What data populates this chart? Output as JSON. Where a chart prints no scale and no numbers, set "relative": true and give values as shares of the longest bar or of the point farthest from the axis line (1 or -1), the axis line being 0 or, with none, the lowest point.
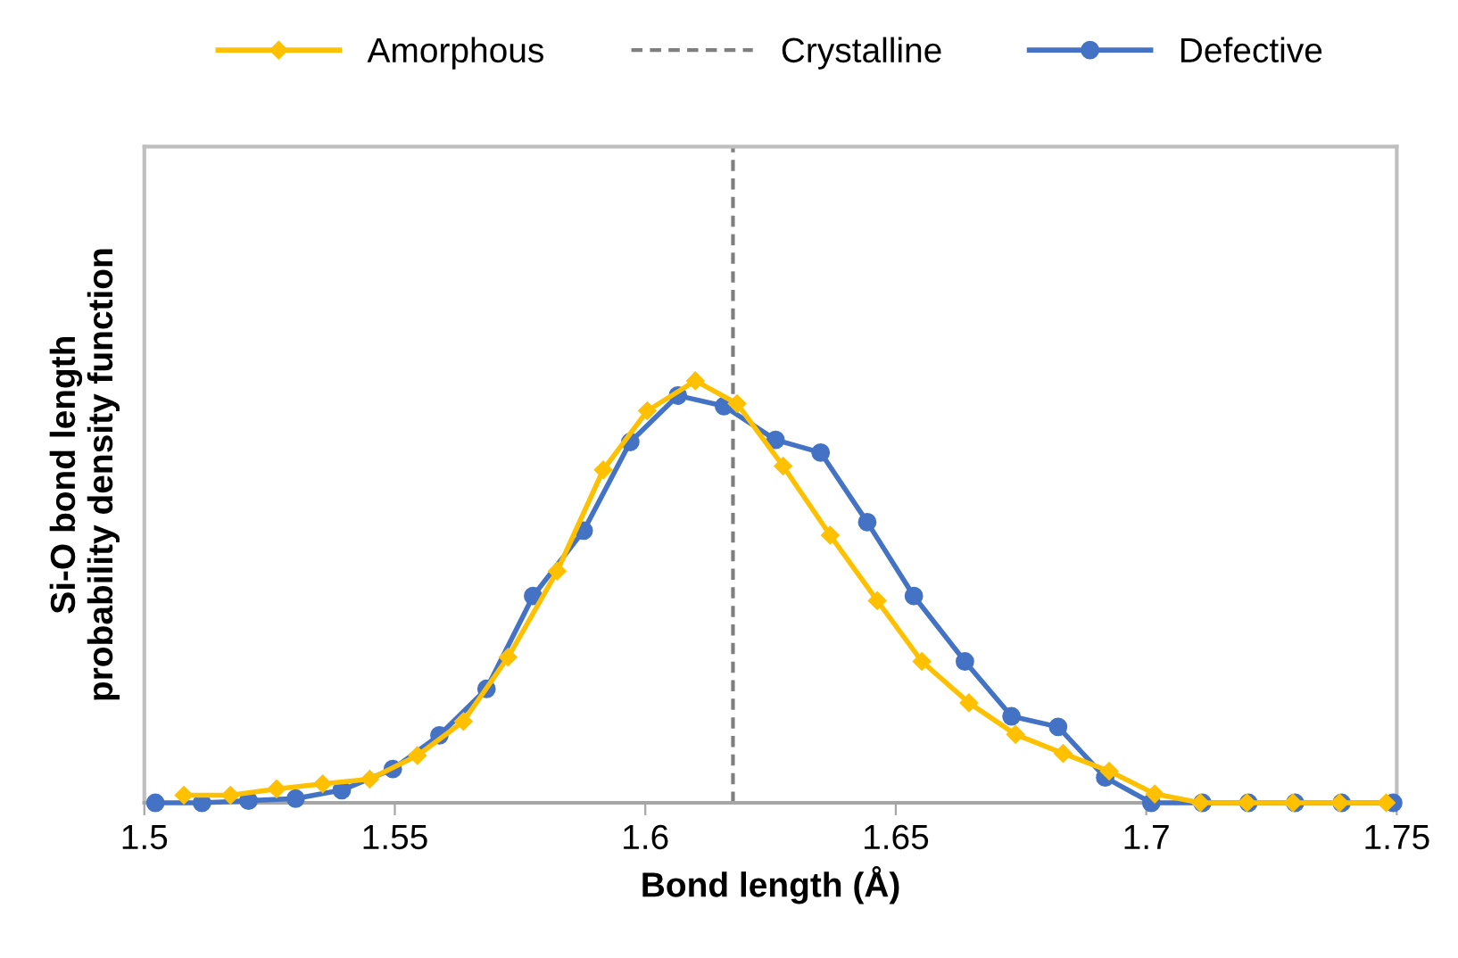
{
  "chart_data": {
    "type": "line",
    "xlabel": "Bond length (Å)",
    "ylabel": "Si-O bond length\nprobability density function",
    "relative": true,
    "xlim": [
      1.5,
      1.75
    ],
    "xticks": [
      1.5,
      1.55,
      1.6,
      1.65,
      1.7,
      1.75
    ],
    "grid": false,
    "legend": "top",
    "series": [
      {
        "name": "Amorphous",
        "color": "#ffc000",
        "marker": "diamond",
        "x": [
          1.5079,
          1.5172,
          1.5264,
          1.5356,
          1.545,
          1.5545,
          1.5637,
          1.5726,
          1.5824,
          1.5916,
          1.6004,
          1.61,
          1.6183,
          1.6275,
          1.6369,
          1.6463,
          1.6552,
          1.6646,
          1.6739,
          1.6834,
          1.6926,
          1.7017,
          1.7108,
          1.7201,
          1.7293,
          1.7386,
          1.7479
        ],
        "values": [
          0.018,
          0.018,
          0.033,
          0.045,
          0.056,
          0.112,
          0.193,
          0.345,
          0.549,
          0.789,
          0.929,
          1.0,
          0.946,
          0.798,
          0.634,
          0.479,
          0.335,
          0.237,
          0.162,
          0.117,
          0.075,
          0.021,
          0,
          0,
          0,
          0,
          0
        ]
      },
      {
        "name": "Defective",
        "color": "#4472c4",
        "marker": "circle",
        "x": [
          1.5022,
          1.5115,
          1.5208,
          1.5302,
          1.5394,
          1.5496,
          1.5589,
          1.5683,
          1.5776,
          1.5877,
          1.597,
          1.6065,
          1.6157,
          1.626,
          1.635,
          1.6443,
          1.6536,
          1.6638,
          1.6731,
          1.6824,
          1.6918,
          1.701,
          1.7112,
          1.7204,
          1.7297,
          1.739,
          1.7493
        ],
        "values": [
          0,
          0,
          0.005,
          0.01,
          0.03,
          0.08,
          0.16,
          0.27,
          0.49,
          0.645,
          0.855,
          0.965,
          0.94,
          0.86,
          0.83,
          0.665,
          0.49,
          0.335,
          0.205,
          0.18,
          0.06,
          0,
          0,
          0,
          0,
          0,
          0
        ]
      }
    ],
    "ref_lines": [
      {
        "axis": "x",
        "value": 1.6175,
        "label": "Crystalline",
        "color": "#7f7f7f",
        "line_style": "dashed"
      }
    ]
  }
}
